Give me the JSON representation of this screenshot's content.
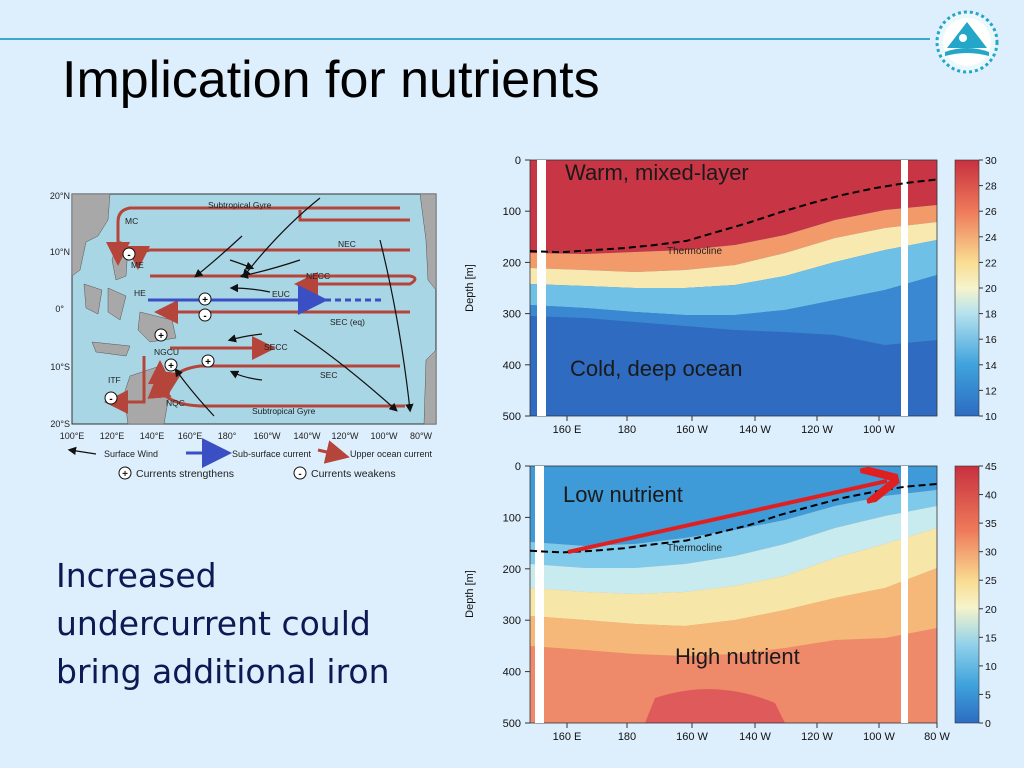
{
  "slide": {
    "title": "Implication for nutrients",
    "body": "Increased undercurrent could bring additional iron",
    "colors": {
      "background": "#ddeefc",
      "title_line": "#3aa9c9",
      "body_text": "#0b1a52"
    }
  },
  "logo": {
    "icon": "organization-logo-icon"
  },
  "map": {
    "lat_labels": [
      "20°N",
      "10°N",
      "0°",
      "10°S",
      "20°S"
    ],
    "lon_labels": [
      "100°E",
      "120°E",
      "140°E",
      "160°E",
      "180°",
      "160°W",
      "140°W",
      "120°W",
      "100°W",
      "80°W"
    ],
    "current_labels": {
      "gyre_top": "Subtropical Gyre",
      "mc": "MC",
      "me": "ME",
      "he": "HE",
      "nec": "NEC",
      "necc": "NECC",
      "euc": "EUC",
      "sec_eq": "SEC (eq)",
      "ngcu": "NGCU",
      "secc": "SECC",
      "sec": "SEC",
      "itf": "ITF",
      "nqc": "NQC",
      "gyre_bottom": "Subtropical Gyre"
    },
    "legend": {
      "surface_wind": "Surface Wind",
      "subsurface_current": "Sub-surface current",
      "upper_current": "Upper ocean current",
      "strengthens": "Currents strengthens",
      "weakens": "Currents weakens",
      "plus": "+",
      "minus": "-"
    },
    "colors": {
      "ocean": "#a9d6e5",
      "land": "#a8a8a8",
      "upper_current": "#b5443a",
      "subsurface": "#3b4fc4"
    }
  },
  "chart_data": [
    {
      "type": "heatmap",
      "title": "",
      "ylabel": "Depth [m]",
      "ylim": [
        500,
        0
      ],
      "y_ticks": [
        "0",
        "100",
        "200",
        "300",
        "400",
        "500"
      ],
      "x_ticks": [
        "160 E",
        "180",
        "160 W",
        "140 W",
        "120 W",
        "100 W"
      ],
      "colorbar": {
        "min": 10,
        "max": 30,
        "ticks": [
          "30",
          "28",
          "26",
          "24",
          "22",
          "20",
          "18",
          "16",
          "14",
          "12",
          "10"
        ]
      },
      "annotations": {
        "top": "Warm, mixed-layer",
        "bottom": "Cold, deep ocean",
        "line": "Thermocline"
      },
      "thermocline_depth_m": [
        178,
        180,
        176,
        172,
        166,
        158,
        140,
        122,
        102,
        84,
        68,
        55,
        45,
        38
      ]
    },
    {
      "type": "heatmap",
      "title": "",
      "ylabel": "Depth [m]",
      "ylim": [
        500,
        0
      ],
      "y_ticks": [
        "0",
        "100",
        "200",
        "300",
        "400",
        "500"
      ],
      "x_ticks": [
        "160 E",
        "180",
        "160 W",
        "140 W",
        "120 W",
        "100 W",
        "80 W"
      ],
      "colorbar": {
        "min": 0,
        "max": 45,
        "ticks": [
          "45",
          "40",
          "35",
          "30",
          "25",
          "20",
          "15",
          "10",
          "5",
          "0"
        ]
      },
      "annotations": {
        "top": "Low nutrient",
        "bottom": "High nutrient",
        "line": "Thermocline"
      },
      "thermocline_depth_m": [
        165,
        168,
        165,
        160,
        152,
        145,
        130,
        115,
        95,
        78,
        62,
        50,
        40,
        35
      ]
    }
  ]
}
